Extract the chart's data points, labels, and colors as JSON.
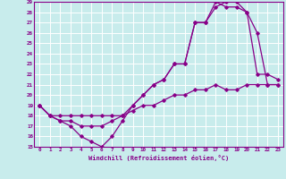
{
  "xlabel": "Windchill (Refroidissement éolien,°C)",
  "xlim": [
    -0.5,
    23.5
  ],
  "ylim": [
    15,
    29
  ],
  "xticks": [
    0,
    1,
    2,
    3,
    4,
    5,
    6,
    7,
    8,
    9,
    10,
    11,
    12,
    13,
    14,
    15,
    16,
    17,
    18,
    19,
    20,
    21,
    22,
    23
  ],
  "yticks": [
    15,
    16,
    17,
    18,
    19,
    20,
    21,
    22,
    23,
    24,
    25,
    26,
    27,
    28,
    29
  ],
  "bg_color": "#c8ecec",
  "line_color": "#880088",
  "grid_color": "#ffffff",
  "line1_x": [
    0,
    1,
    2,
    3,
    4,
    5,
    6,
    7,
    8,
    9,
    10,
    11,
    12,
    13,
    14,
    15,
    16,
    17,
    18,
    19,
    20,
    21,
    22,
    23
  ],
  "line1_y": [
    19,
    18,
    17.5,
    17,
    16,
    15.5,
    15,
    16,
    17.5,
    19,
    20,
    21,
    21.5,
    23,
    23,
    27,
    27,
    29,
    28.5,
    28.5,
    28,
    22,
    22,
    21.5
  ],
  "line2_x": [
    0,
    1,
    2,
    3,
    4,
    5,
    6,
    7,
    8,
    9,
    10,
    11,
    12,
    13,
    14,
    15,
    16,
    17,
    18,
    19,
    20,
    21,
    22,
    23
  ],
  "line2_y": [
    19,
    18,
    17.5,
    17.5,
    17,
    17,
    17,
    17.5,
    18,
    19,
    20,
    21,
    21.5,
    23,
    23,
    27,
    27,
    28.5,
    29,
    29,
    28,
    26,
    21,
    21
  ],
  "line3_x": [
    0,
    1,
    2,
    3,
    4,
    5,
    6,
    7,
    8,
    9,
    10,
    11,
    12,
    13,
    14,
    15,
    16,
    17,
    18,
    19,
    20,
    21,
    22,
    23
  ],
  "line3_y": [
    19,
    18,
    18,
    18,
    18,
    18,
    18,
    18,
    18,
    18.5,
    19,
    19,
    19.5,
    20,
    20,
    20.5,
    20.5,
    21,
    20.5,
    20.5,
    21,
    21,
    21,
    21
  ]
}
